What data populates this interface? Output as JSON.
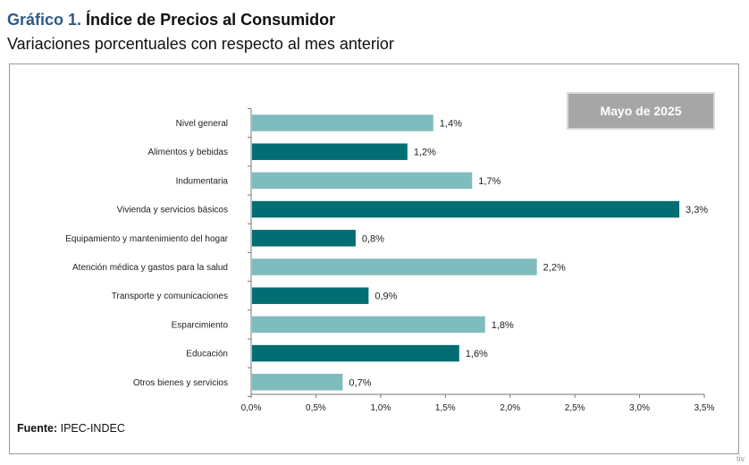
{
  "header": {
    "title_prefix": "Gráfico 1.",
    "title": "Índice de Precios al Consumidor",
    "subtitle": "Variaciones porcentuales con respecto al mes anterior"
  },
  "badge": {
    "label": "Mayo de 2025"
  },
  "footer": {
    "source_label": "Fuente:",
    "source_value": "IPEC-INDEC",
    "corner_mark": "tiv"
  },
  "colors": {
    "light_bar": "#7fbcbe",
    "dark_bar": "#006e73",
    "badge_bg": "#a6a6a6"
  },
  "chart_data": {
    "type": "bar",
    "orientation": "horizontal",
    "categories": [
      "Nivel general",
      "Alimentos y bebidas",
      "Indumentaria",
      "Vivienda y servicios básicos",
      "Equipamiento y mantenimiento del hogar",
      "Atención médica y gastos para la salud",
      "Transporte y comunicaciones",
      "Esparcimiento",
      "Educación",
      "Otros bienes y servicios"
    ],
    "values": [
      1.4,
      1.2,
      1.7,
      3.3,
      0.8,
      2.2,
      0.9,
      1.8,
      1.6,
      0.7
    ],
    "value_labels": [
      "1,4%",
      "1,2%",
      "1,7%",
      "3,3%",
      "0,8%",
      "2,2%",
      "0,9%",
      "1,8%",
      "1,6%",
      "0,7%"
    ],
    "bar_colors": [
      "#7fbcbe",
      "#006e73",
      "#7fbcbe",
      "#006e73",
      "#006e73",
      "#7fbcbe",
      "#006e73",
      "#7fbcbe",
      "#006e73",
      "#7fbcbe"
    ],
    "xlim": [
      0,
      3.5
    ],
    "xticks": [
      0,
      0.5,
      1.0,
      1.5,
      2.0,
      2.5,
      3.0,
      3.5
    ],
    "xtick_labels": [
      "0,0%",
      "0,5%",
      "1,0%",
      "1,5%",
      "2,0%",
      "2,5%",
      "3,0%",
      "3,5%"
    ],
    "grid": false
  }
}
